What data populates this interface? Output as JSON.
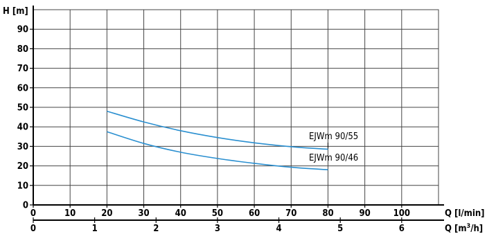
{
  "chart_data": {
    "type": "line",
    "ylabel": "H [m]",
    "xlabel": "Q [l/min]",
    "xlabel2": "Q [m³/h]",
    "xlim": [
      0,
      110
    ],
    "ylim": [
      0,
      100
    ],
    "xticks": [
      0,
      10,
      20,
      30,
      40,
      50,
      60,
      70,
      80,
      90,
      100
    ],
    "yticks": [
      0,
      10,
      20,
      30,
      40,
      50,
      60,
      70,
      80,
      90
    ],
    "xticks2": [
      0,
      1,
      2,
      3,
      4,
      5,
      6
    ],
    "grid": true,
    "colors": {
      "curve": "#2a8fd0",
      "grid": "#444444",
      "axis": "#000000"
    },
    "series": [
      {
        "name": "EJWm 90/55",
        "x": [
          20,
          30,
          40,
          50,
          60,
          70,
          80
        ],
        "y": [
          48,
          42.5,
          38,
          34.5,
          31.8,
          29.8,
          28.5
        ]
      },
      {
        "name": "EJWm 90/46",
        "x": [
          20,
          30,
          40,
          50,
          60,
          70,
          80
        ],
        "y": [
          37.5,
          31.5,
          27,
          23.8,
          21.3,
          19.3,
          18
        ]
      }
    ]
  }
}
